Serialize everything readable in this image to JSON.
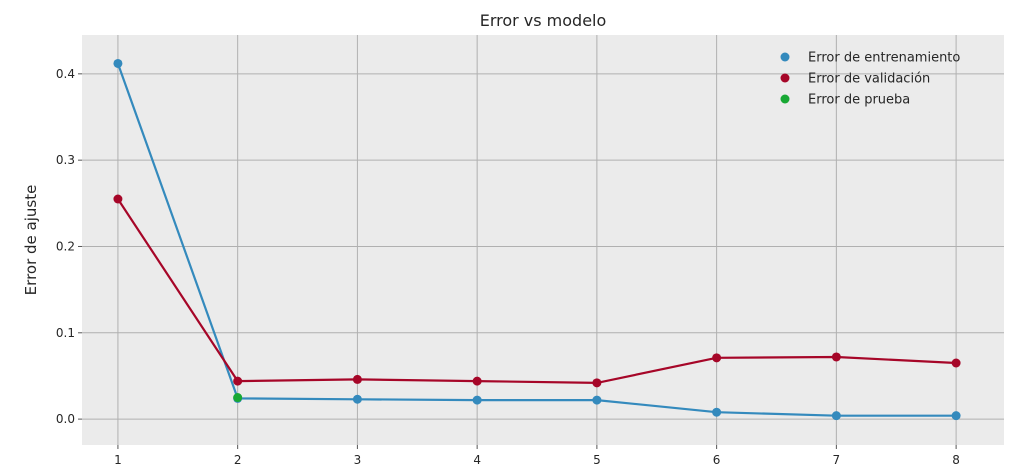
{
  "chart_data": {
    "type": "line",
    "title": "Error vs modelo",
    "xlabel": "",
    "ylabel": "Error de ajuste",
    "x": [
      1,
      2,
      3,
      4,
      5,
      6,
      7,
      8
    ],
    "xlim": [
      0.7,
      8.4
    ],
    "ylim": [
      -0.03,
      0.445
    ],
    "yticks": [
      0.0,
      0.1,
      0.2,
      0.3,
      0.4
    ],
    "ytick_labels": [
      "0.0",
      "0.1",
      "0.2",
      "0.3",
      "0.4"
    ],
    "xtick_labels": [
      "1",
      "2",
      "3",
      "4",
      "5",
      "6",
      "7",
      "8"
    ],
    "grid": true,
    "legend_position": "top-right",
    "series": [
      {
        "name": "Error de entrenamiento",
        "color": "#348ABD",
        "x": [
          1,
          2,
          3,
          4,
          5,
          6,
          7,
          8
        ],
        "values": [
          0.412,
          0.024,
          0.023,
          0.022,
          0.022,
          0.008,
          0.004,
          0.004
        ]
      },
      {
        "name": "Error de validación",
        "color": "#A60628",
        "x": [
          1,
          2,
          3,
          4,
          5,
          6,
          7,
          8
        ],
        "values": [
          0.255,
          0.044,
          0.046,
          0.044,
          0.042,
          0.071,
          0.072,
          0.065
        ]
      },
      {
        "name": "Error de prueba",
        "color": "#18A834",
        "x": [
          2
        ],
        "values": [
          0.025
        ]
      }
    ]
  }
}
